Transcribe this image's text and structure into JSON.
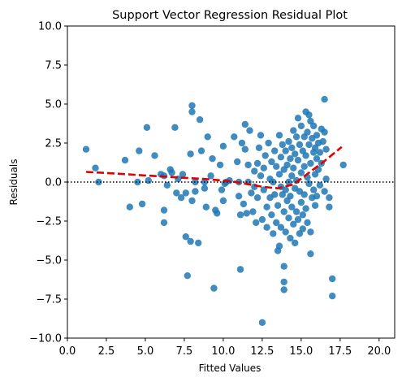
{
  "chart_data": {
    "type": "scatter",
    "title": "Support Vector Regression Residual Plot",
    "xlabel": "Fitted Values",
    "ylabel": "Residuals",
    "xlim": [
      0,
      21
    ],
    "ylim": [
      -10,
      10
    ],
    "xticks": [
      0.0,
      2.5,
      5.0,
      7.5,
      10.0,
      12.5,
      15.0,
      17.5,
      20.0
    ],
    "xtick_labels": [
      "0.0",
      "2.5",
      "5.0",
      "7.5",
      "10.0",
      "12.5",
      "15.0",
      "17.5",
      "20.0"
    ],
    "yticks": [
      -10.0,
      -7.5,
      -5.0,
      -2.5,
      0.0,
      2.5,
      5.0,
      7.5,
      10.0
    ],
    "ytick_labels": [
      "−10.0",
      "−7.5",
      "−5.0",
      "−2.5",
      "0.0",
      "2.5",
      "5.0",
      "7.5",
      "10.0"
    ],
    "grid": false,
    "point_color": "#1f77b4",
    "reference_line": {
      "y": 0,
      "style": "dotted",
      "color": "#000000"
    },
    "trend_line": {
      "color": "#dd0000",
      "style": "dashed",
      "x": [
        1.2,
        3.0,
        5.0,
        7.0,
        9.0,
        10.5,
        11.5,
        12.5,
        13.5,
        14.5,
        15.5,
        16.5,
        17.6
      ],
      "y": [
        0.65,
        0.55,
        0.42,
        0.3,
        0.18,
        0.05,
        -0.12,
        -0.3,
        -0.4,
        -0.15,
        0.6,
        1.35,
        2.25
      ]
    },
    "points": [
      [
        1.2,
        2.1
      ],
      [
        1.8,
        0.9
      ],
      [
        2.0,
        0.0
      ],
      [
        3.7,
        1.4
      ],
      [
        4.0,
        -1.6
      ],
      [
        4.5,
        0.0
      ],
      [
        4.6,
        2.0
      ],
      [
        4.8,
        -1.4
      ],
      [
        5.1,
        3.5
      ],
      [
        5.2,
        0.1
      ],
      [
        5.6,
        1.7
      ],
      [
        6.0,
        0.5
      ],
      [
        6.2,
        0.4
      ],
      [
        6.2,
        -1.8
      ],
      [
        6.2,
        -2.6
      ],
      [
        6.4,
        -0.2
      ],
      [
        6.6,
        0.8
      ],
      [
        6.7,
        0.6
      ],
      [
        6.9,
        3.5
      ],
      [
        7.0,
        -0.7
      ],
      [
        7.1,
        0.2
      ],
      [
        7.3,
        -1.0
      ],
      [
        7.4,
        0.5
      ],
      [
        7.6,
        -0.7
      ],
      [
        7.6,
        -3.5
      ],
      [
        7.7,
        -6.0
      ],
      [
        7.9,
        -3.8
      ],
      [
        7.9,
        1.8
      ],
      [
        8.0,
        4.9
      ],
      [
        8.0,
        4.5
      ],
      [
        8.0,
        -1.2
      ],
      [
        8.2,
        -0.6
      ],
      [
        8.2,
        0.0
      ],
      [
        8.4,
        -3.9
      ],
      [
        8.5,
        4.0
      ],
      [
        8.6,
        2.0
      ],
      [
        8.8,
        -0.4
      ],
      [
        8.8,
        0.0
      ],
      [
        8.9,
        -1.6
      ],
      [
        9.0,
        2.9
      ],
      [
        9.2,
        0.4
      ],
      [
        9.3,
        1.5
      ],
      [
        9.4,
        -6.8
      ],
      [
        9.5,
        -1.8
      ],
      [
        9.6,
        -2.0
      ],
      [
        9.8,
        1.1
      ],
      [
        9.9,
        -0.5
      ],
      [
        10.0,
        2.3
      ],
      [
        10.0,
        -1.2
      ],
      [
        10.1,
        -0.1
      ],
      [
        10.2,
        0.0
      ],
      [
        10.4,
        0.1
      ],
      [
        10.7,
        2.9
      ],
      [
        10.9,
        1.3
      ],
      [
        11.0,
        0.0
      ],
      [
        11.0,
        -0.9
      ],
      [
        11.1,
        -5.6
      ],
      [
        11.1,
        -2.1
      ],
      [
        11.2,
        2.5
      ],
      [
        11.3,
        -1.4
      ],
      [
        11.4,
        3.7
      ],
      [
        11.4,
        2.1
      ],
      [
        11.5,
        -2.0
      ],
      [
        11.6,
        1.1
      ],
      [
        11.6,
        0.0
      ],
      [
        11.7,
        3.3
      ],
      [
        11.8,
        -0.7
      ],
      [
        11.9,
        -1.9
      ],
      [
        12.0,
        0.7
      ],
      [
        12.0,
        -0.3
      ],
      [
        12.1,
        -2.6
      ],
      [
        12.2,
        1.2
      ],
      [
        12.2,
        -1.0
      ],
      [
        12.3,
        2.2
      ],
      [
        12.4,
        3.0
      ],
      [
        12.4,
        0.4
      ],
      [
        12.5,
        -2.4
      ],
      [
        12.5,
        -9.0
      ],
      [
        12.6,
        0.9
      ],
      [
        12.6,
        -0.5
      ],
      [
        12.7,
        1.7
      ],
      [
        12.8,
        -1.6
      ],
      [
        12.8,
        -2.9
      ],
      [
        12.9,
        2.5
      ],
      [
        13.0,
        0.2
      ],
      [
        13.0,
        -1.0
      ],
      [
        13.1,
        1.3
      ],
      [
        13.1,
        -2.1
      ],
      [
        13.2,
        0.0
      ],
      [
        13.2,
        -3.3
      ],
      [
        13.3,
        2.0
      ],
      [
        13.3,
        -0.8
      ],
      [
        13.4,
        1.0
      ],
      [
        13.4,
        -2.6
      ],
      [
        13.5,
        -1.5
      ],
      [
        13.5,
        -4.4
      ],
      [
        13.6,
        3.0
      ],
      [
        13.6,
        0.5
      ],
      [
        13.6,
        -4.1
      ],
      [
        13.7,
        1.6
      ],
      [
        13.7,
        -0.3
      ],
      [
        13.7,
        -2.9
      ],
      [
        13.8,
        2.4
      ],
      [
        13.8,
        -0.8
      ],
      [
        13.9,
        0.8
      ],
      [
        13.9,
        -1.9
      ],
      [
        13.9,
        -5.4
      ],
      [
        13.9,
        -6.4
      ],
      [
        13.9,
        -6.9
      ],
      [
        14.0,
        2.0
      ],
      [
        14.0,
        -0.5
      ],
      [
        14.0,
        -3.2
      ],
      [
        14.1,
        1.1
      ],
      [
        14.1,
        -1.2
      ],
      [
        14.2,
        2.6
      ],
      [
        14.2,
        0.0
      ],
      [
        14.2,
        -2.3
      ],
      [
        14.3,
        1.5
      ],
      [
        14.3,
        -0.9
      ],
      [
        14.3,
        -3.6
      ],
      [
        14.4,
        2.2
      ],
      [
        14.4,
        0.4
      ],
      [
        14.4,
        -1.6
      ],
      [
        14.5,
        3.3
      ],
      [
        14.5,
        0.9
      ],
      [
        14.5,
        -2.7
      ],
      [
        14.6,
        1.8
      ],
      [
        14.6,
        -0.4
      ],
      [
        14.6,
        -3.9
      ],
      [
        14.7,
        2.9
      ],
      [
        14.7,
        0.1
      ],
      [
        14.7,
        -1.9
      ],
      [
        14.8,
        4.1
      ],
      [
        14.8,
        1.4
      ],
      [
        14.8,
        -2.4
      ],
      [
        14.9,
        2.4
      ],
      [
        14.9,
        -0.6
      ],
      [
        14.9,
        -3.3
      ],
      [
        15.0,
        3.6
      ],
      [
        15.0,
        0.6
      ],
      [
        15.0,
        -1.3
      ],
      [
        15.1,
        2.0
      ],
      [
        15.1,
        -2.1
      ],
      [
        15.1,
        -3.0
      ],
      [
        15.2,
        2.9
      ],
      [
        15.2,
        1.0
      ],
      [
        15.2,
        -0.8
      ],
      [
        15.3,
        4.5
      ],
      [
        15.3,
        1.7
      ],
      [
        15.3,
        -1.7
      ],
      [
        15.4,
        3.2
      ],
      [
        15.4,
        0.3
      ],
      [
        15.4,
        -2.6
      ],
      [
        15.5,
        4.3
      ],
      [
        15.5,
        2.4
      ],
      [
        15.5,
        -0.1
      ],
      [
        15.6,
        3.9
      ],
      [
        15.6,
        1.2
      ],
      [
        15.6,
        -3.2
      ],
      [
        15.6,
        -4.6
      ],
      [
        15.7,
        2.8
      ],
      [
        15.7,
        -1.0
      ],
      [
        15.8,
        3.6
      ],
      [
        15.8,
        1.9
      ],
      [
        15.8,
        -0.5
      ],
      [
        15.9,
        2.2
      ],
      [
        15.9,
        0.5
      ],
      [
        15.9,
        -1.5
      ],
      [
        16.0,
        3.0
      ],
      [
        16.0,
        1.5
      ],
      [
        16.0,
        -0.9
      ],
      [
        16.1,
        2.5
      ],
      [
        16.1,
        0.8
      ],
      [
        16.2,
        1.9
      ],
      [
        16.2,
        -0.2
      ],
      [
        16.3,
        3.4
      ],
      [
        16.3,
        1.2
      ],
      [
        16.4,
        2.6
      ],
      [
        16.5,
        5.3
      ],
      [
        16.5,
        3.2
      ],
      [
        16.5,
        -0.6
      ],
      [
        16.6,
        2.1
      ],
      [
        16.6,
        0.2
      ],
      [
        16.8,
        -1.0
      ],
      [
        16.8,
        -1.6
      ],
      [
        17.0,
        -6.2
      ],
      [
        17.0,
        -7.3
      ],
      [
        17.7,
        1.1
      ]
    ]
  }
}
